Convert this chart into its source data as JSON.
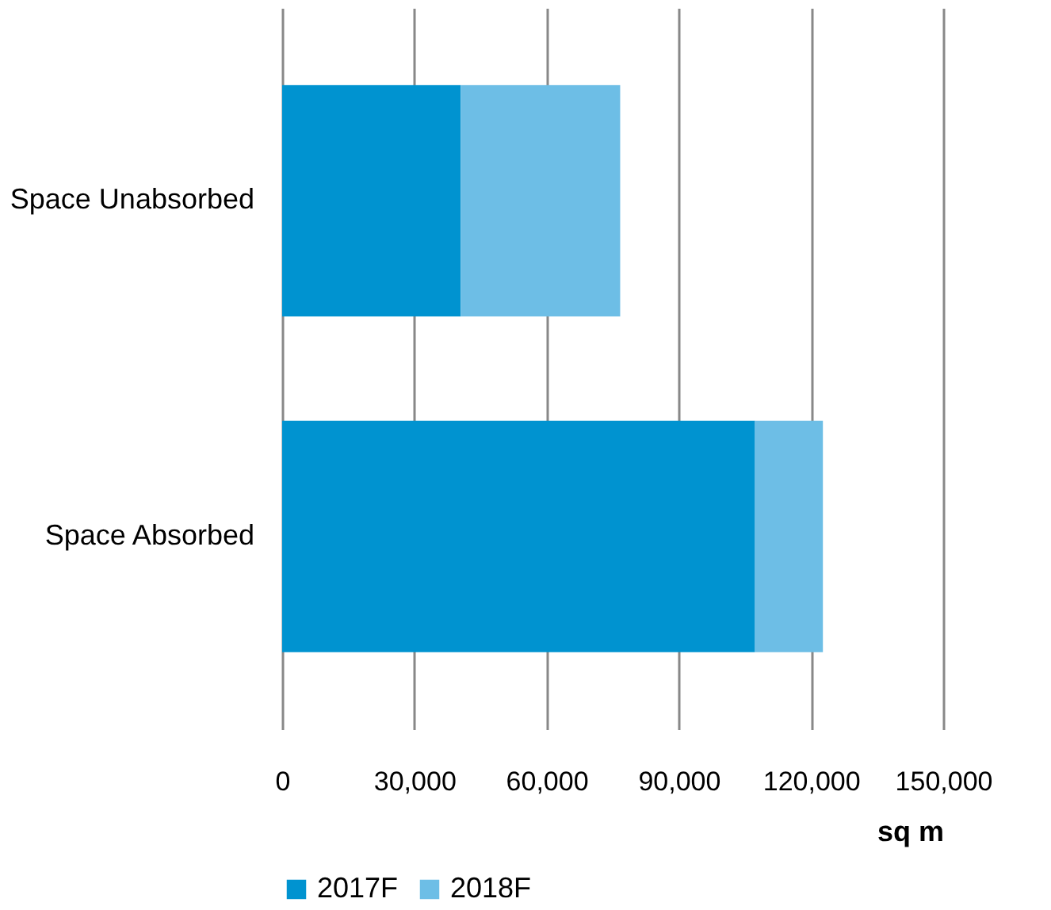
{
  "chart_data": {
    "type": "bar",
    "orientation": "horizontal",
    "stacked": true,
    "categories": [
      "Space Unabsorbed",
      "Space Absorbed"
    ],
    "series": [
      {
        "name": "2017F",
        "color": "#0093d0",
        "values": [
          40500,
          107300
        ]
      },
      {
        "name": "2018F",
        "color": "#6dbee6",
        "values": [
          36200,
          15400
        ]
      }
    ],
    "xlim": [
      0,
      150000
    ],
    "xticks": [
      {
        "value": 0,
        "label": "0"
      },
      {
        "value": 30000,
        "label": "30,000"
      },
      {
        "value": 60000,
        "label": "60,000"
      },
      {
        "value": 90000,
        "label": "90,000"
      },
      {
        "value": 120000,
        "label": "120,000"
      },
      {
        "value": 150000,
        "label": "150,000"
      }
    ],
    "xlabel": "sq m",
    "grid": "x",
    "legend": "bottom"
  }
}
